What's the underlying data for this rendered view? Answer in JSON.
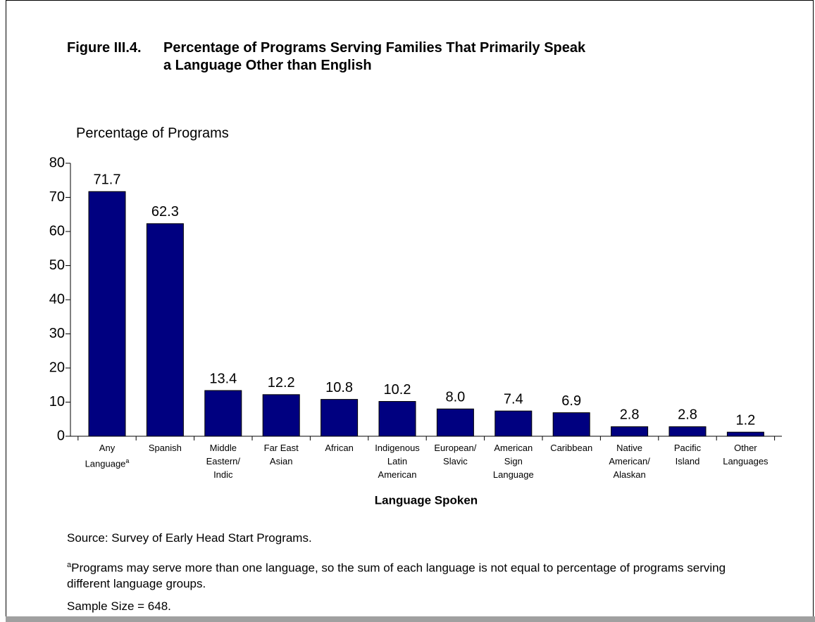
{
  "chart_data": {
    "type": "bar",
    "title_number": "Figure III.4.",
    "title": "Percentage of Programs Serving Families That Primarily Speak\na Language Other than English",
    "y_axis_label": "Percentage of Programs",
    "x_axis_label": "Language Spoken",
    "categories": [
      "Any\nLanguage",
      "Spanish",
      "Middle\nEastern/\nIndic",
      "Far East\nAsian",
      "African",
      "Indigenous\nLatin\nAmerican",
      "European/\nSlavic",
      "American\nSign\nLanguage",
      "Caribbean",
      "Native\nAmerican/\nAlaskan",
      "Pacific\nIsland",
      "Other\nLanguages"
    ],
    "category_footnote_marker": "a",
    "values": [
      71.7,
      62.3,
      13.4,
      12.2,
      10.8,
      10.2,
      8.0,
      7.4,
      6.9,
      2.8,
      2.8,
      1.2
    ],
    "value_labels": [
      "71.7",
      "62.3",
      "13.4",
      "12.2",
      "10.8",
      "10.2",
      "8.0",
      "7.4",
      "6.9",
      "2.8",
      "2.8",
      "1.2"
    ],
    "color": "#000080",
    "ylim": [
      0,
      80
    ],
    "yticks": [
      0,
      10,
      20,
      30,
      40,
      50,
      60,
      70,
      80
    ],
    "grid": false,
    "source": "Source:  Survey of Early Head Start Programs.",
    "footnote": {
      "marker": "a",
      "text": "Programs may serve more than one language, so the sum of each language is not equal to percentage of programs serving different language groups."
    },
    "sample_size_note": "Sample Size = 648."
  }
}
